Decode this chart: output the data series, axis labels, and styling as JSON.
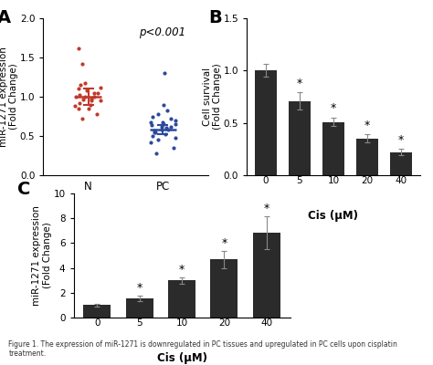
{
  "panel_A": {
    "label": "A",
    "N_points": [
      1.0,
      0.95,
      1.05,
      0.9,
      1.1,
      0.85,
      1.0,
      1.05,
      0.95,
      1.0,
      0.88,
      1.12,
      0.78,
      1.15,
      0.92,
      1.02,
      0.97,
      0.85,
      1.08,
      0.72,
      0.98,
      1.62,
      1.42,
      1.18
    ],
    "PC_points": [
      0.58,
      0.62,
      0.55,
      0.65,
      0.52,
      0.68,
      0.6,
      0.57,
      0.64,
      0.7,
      0.48,
      0.72,
      0.45,
      0.75,
      0.58,
      0.62,
      0.5,
      0.68,
      0.42,
      0.35,
      0.28,
      0.82,
      0.78,
      0.9,
      1.3,
      0.55,
      0.65
    ],
    "N_mean": 1.0,
    "N_sem": 0.1,
    "PC_mean": 0.58,
    "PC_sem": 0.055,
    "N_color": "#c0392b",
    "PC_color": "#2c4a9c",
    "pvalue_text": "p<0.001",
    "ylabel": "miR-1271 expression\n(Fold Change)",
    "ylim": [
      0.0,
      2.0
    ],
    "yticks": [
      0.0,
      0.5,
      1.0,
      1.5,
      2.0
    ],
    "xlabel_N": "N",
    "xlabel_PC": "PC"
  },
  "panel_B": {
    "label": "B",
    "categories": [
      "0",
      "5",
      "10",
      "20",
      "40"
    ],
    "values": [
      1.0,
      0.71,
      0.51,
      0.35,
      0.22
    ],
    "errors": [
      0.06,
      0.08,
      0.04,
      0.04,
      0.03
    ],
    "bar_color": "#2b2b2b",
    "ylabel": "Cell survival\n(Fold Change)",
    "xlabel": "Cis (μM)",
    "ylim": [
      0.0,
      1.5
    ],
    "yticks": [
      0.0,
      0.5,
      1.0,
      1.5
    ],
    "significance": [
      false,
      true,
      true,
      true,
      true
    ]
  },
  "panel_C": {
    "label": "C",
    "categories": [
      "0",
      "5",
      "10",
      "20",
      "40"
    ],
    "values": [
      1.0,
      1.55,
      3.0,
      4.7,
      6.85
    ],
    "errors": [
      0.12,
      0.2,
      0.25,
      0.7,
      1.3
    ],
    "bar_color": "#2b2b2b",
    "ylabel": "miR-1271 expression\n(Fold Change)",
    "xlabel": "Cis (μM)",
    "ylim": [
      0.0,
      10.0
    ],
    "yticks": [
      0,
      2,
      4,
      6,
      8,
      10
    ],
    "significance": [
      false,
      true,
      true,
      true,
      true
    ]
  },
  "caption": "Figure 1. The expression of miR-1271 is downregulated in PC tissues and upregulated in PC cells upon cisplatin treatment.",
  "background_color": "#ffffff",
  "label_fontsize": 12,
  "tick_fontsize": 7.5,
  "axis_label_fontsize": 7.5,
  "xlabel_fontsize": 8.5,
  "star_fontsize": 9
}
